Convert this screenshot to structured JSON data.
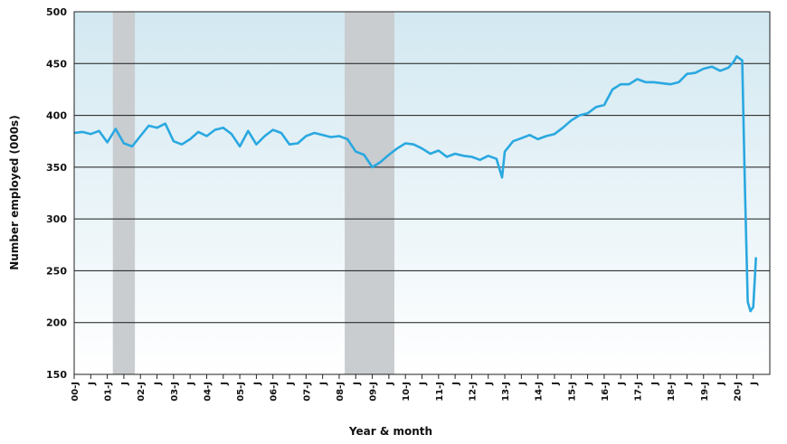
{
  "chart_data": {
    "type": "line",
    "title": "",
    "xlabel": "Year & month",
    "ylabel": "Number employed (000s)",
    "ylim": [
      150,
      500
    ],
    "yticks": [
      150,
      200,
      250,
      300,
      350,
      400,
      450,
      500
    ],
    "xlim": [
      "2000-01",
      "2020-12"
    ],
    "x_tick_labels": [
      "00-J",
      "J",
      "01-J",
      "J",
      "02-J",
      "J",
      "03-J",
      "J",
      "04-J",
      "J",
      "05-J",
      "J",
      "06-J",
      "J",
      "07-J",
      "J",
      "08-J",
      "J",
      "09-J",
      "J",
      "10-J",
      "J",
      "11-J",
      "J",
      "12-J",
      "J",
      "13-J",
      "J",
      "14-J",
      "J",
      "15-J",
      "J",
      "16-J",
      "J",
      "17-J",
      "J",
      "18-J",
      "J",
      "19-J",
      "J",
      "20-J",
      "J"
    ],
    "grid": "horizontal",
    "legend": "none",
    "line_color": "#2aa8e0",
    "shaded_periods": [
      {
        "start": "2001-03",
        "end": "2001-11"
      },
      {
        "start": "2008-03",
        "end": "2009-09"
      }
    ],
    "series": [
      {
        "x": [
          "2000-01",
          "2000-04",
          "2000-07",
          "2000-10",
          "2001-01",
          "2001-04",
          "2001-07",
          "2001-10",
          "2002-01",
          "2002-04",
          "2002-07",
          "2002-10",
          "2003-01",
          "2003-04",
          "2003-07",
          "2003-10",
          "2004-01",
          "2004-04",
          "2004-07",
          "2004-10",
          "2005-01",
          "2005-04",
          "2005-07",
          "2005-10",
          "2006-01",
          "2006-04",
          "2006-07",
          "2006-10",
          "2007-01",
          "2007-04",
          "2007-07",
          "2007-10",
          "2008-01",
          "2008-04",
          "2008-07",
          "2008-10",
          "2009-01",
          "2009-04",
          "2009-07",
          "2009-10",
          "2010-01",
          "2010-04",
          "2010-07",
          "2010-10",
          "2011-01",
          "2011-04",
          "2011-07",
          "2011-10",
          "2012-01",
          "2012-04",
          "2012-07",
          "2012-10",
          "2012-12",
          "2013-01",
          "2013-04",
          "2013-07",
          "2013-10",
          "2014-01",
          "2014-04",
          "2014-07",
          "2014-10",
          "2015-01",
          "2015-04",
          "2015-07",
          "2015-10",
          "2016-01",
          "2016-04",
          "2016-07",
          "2016-10",
          "2017-01",
          "2017-04",
          "2017-07",
          "2017-10",
          "2018-01",
          "2018-04",
          "2018-07",
          "2018-10",
          "2019-01",
          "2019-04",
          "2019-07",
          "2019-10",
          "2019-12",
          "2020-01",
          "2020-02",
          "2020-03",
          "2020-04",
          "2020-05",
          "2020-06",
          "2020-07",
          "2020-08"
        ],
        "values": [
          383,
          384,
          382,
          385,
          374,
          387,
          373,
          370,
          380,
          390,
          388,
          392,
          375,
          372,
          377,
          384,
          380,
          386,
          388,
          382,
          370,
          385,
          372,
          380,
          386,
          383,
          372,
          373,
          380,
          383,
          381,
          379,
          380,
          377,
          365,
          362,
          350,
          355,
          362,
          368,
          373,
          372,
          368,
          363,
          366,
          360,
          363,
          361,
          360,
          357,
          361,
          358,
          340,
          365,
          375,
          378,
          381,
          377,
          380,
          382,
          388,
          395,
          400,
          402,
          408,
          410,
          425,
          430,
          430,
          435,
          432,
          432,
          431,
          430,
          432,
          440,
          441,
          445,
          447,
          443,
          446,
          452,
          457,
          455,
          453,
          330,
          220,
          211,
          215,
          263
        ]
      }
    ]
  }
}
